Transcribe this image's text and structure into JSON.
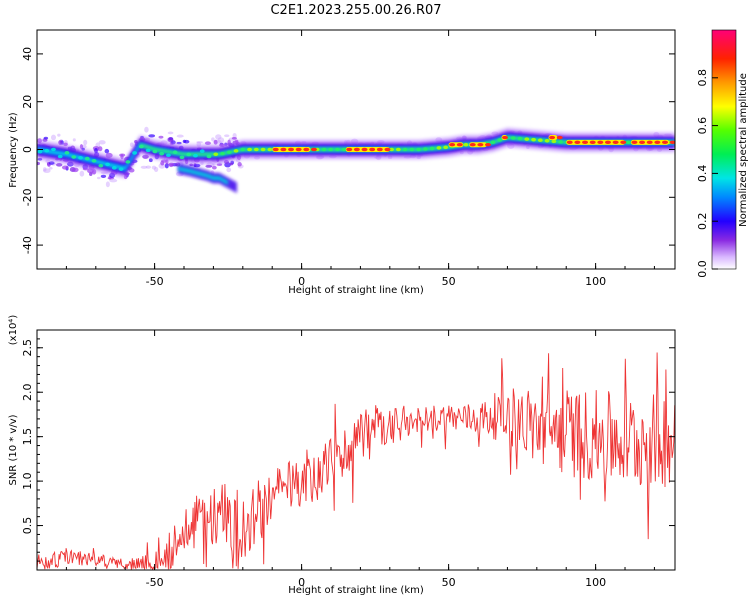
{
  "title": "C2E1.2023.255.00.26.R07",
  "chart_data": [
    {
      "type": "heatmap",
      "xlabel": "Height of straight line (km)",
      "ylabel": "Frequency (Hz)",
      "xlim": [
        -90,
        127
      ],
      "ylim": [
        -50,
        50
      ],
      "xticks": [
        -50,
        0,
        50,
        100
      ],
      "yticks": [
        -40,
        -20,
        0,
        20,
        40
      ],
      "colorbar": {
        "label": "Normalized spectral amplitude",
        "range": [
          0.0,
          1.0
        ],
        "ticks": [
          "0.0",
          "0.2",
          "0.4",
          "0.6",
          "0.8"
        ],
        "tick_values": [
          0.0,
          0.2,
          0.4,
          0.6,
          0.8
        ]
      },
      "centerline": {
        "x": [
          -90,
          -80,
          -70,
          -60,
          -55,
          -50,
          -40,
          -30,
          -28,
          -20,
          -10,
          0,
          10,
          20,
          30,
          40,
          50,
          55,
          60,
          65,
          70,
          80,
          90,
          100,
          110,
          120,
          127
        ],
        "y": [
          0,
          -2,
          -5,
          -8,
          2,
          0,
          -2,
          -2,
          -2,
          0,
          0,
          0,
          0,
          0,
          0,
          0,
          1,
          2,
          2,
          3,
          5,
          4,
          3,
          3,
          3,
          3,
          3
        ]
      },
      "lower_branch": {
        "x": [
          -42,
          -38,
          -35,
          -32,
          -30,
          -28,
          -25,
          -22
        ],
        "y": [
          -8,
          -9,
          -10,
          -11,
          -12,
          -12,
          -14,
          -16
        ]
      },
      "peak_segments": [
        {
          "x0": -10,
          "x1": 3,
          "y": 0
        },
        {
          "x0": 15,
          "x1": 30,
          "y": 0
        },
        {
          "x0": 50,
          "x1": 55,
          "y": 2
        },
        {
          "x0": 57,
          "x1": 63,
          "y": 2
        },
        {
          "x0": 68,
          "x1": 70,
          "y": 5
        },
        {
          "x0": 84,
          "x1": 87,
          "y": 5
        },
        {
          "x0": 90,
          "x1": 110,
          "y": 3
        },
        {
          "x0": 112,
          "x1": 125,
          "y": 3
        }
      ]
    },
    {
      "type": "line",
      "xlabel": "Height of straight line (km)",
      "ylabel": "SNR (10 * v/v)",
      "yscale_label": "(x10⁴)",
      "xlim": [
        -90,
        127
      ],
      "ylim": [
        0,
        2.7
      ],
      "xticks": [
        -50,
        0,
        50,
        100
      ],
      "yticks": [
        0.5,
        1.0,
        1.5,
        2.0,
        2.5
      ],
      "color": "#ee3333",
      "trend": {
        "x": [
          -90,
          -80,
          -70,
          -60,
          -50,
          -45,
          -40,
          -35,
          -30,
          -25,
          -20,
          -10,
          -5,
          0,
          5,
          10,
          15,
          20,
          25,
          30,
          35,
          40,
          50,
          60,
          70,
          80,
          90,
          100,
          110,
          120,
          127
        ],
        "y": [
          0.08,
          0.15,
          0.12,
          0.06,
          0.07,
          0.2,
          0.4,
          0.55,
          0.6,
          0.6,
          0.5,
          0.8,
          0.95,
          0.95,
          1.05,
          1.2,
          1.35,
          1.45,
          1.6,
          1.55,
          1.65,
          1.7,
          1.72,
          1.7,
          1.75,
          1.6,
          1.55,
          1.5,
          1.45,
          1.45,
          1.5
        ]
      },
      "noise_amplitude": {
        "x": [
          -90,
          -60,
          -45,
          -30,
          -20,
          0,
          20,
          40,
          60,
          75,
          90,
          110,
          127
        ],
        "y": [
          0.12,
          0.05,
          0.25,
          0.35,
          0.4,
          0.25,
          0.35,
          0.15,
          0.18,
          0.4,
          0.5,
          0.55,
          0.55
        ]
      }
    }
  ]
}
